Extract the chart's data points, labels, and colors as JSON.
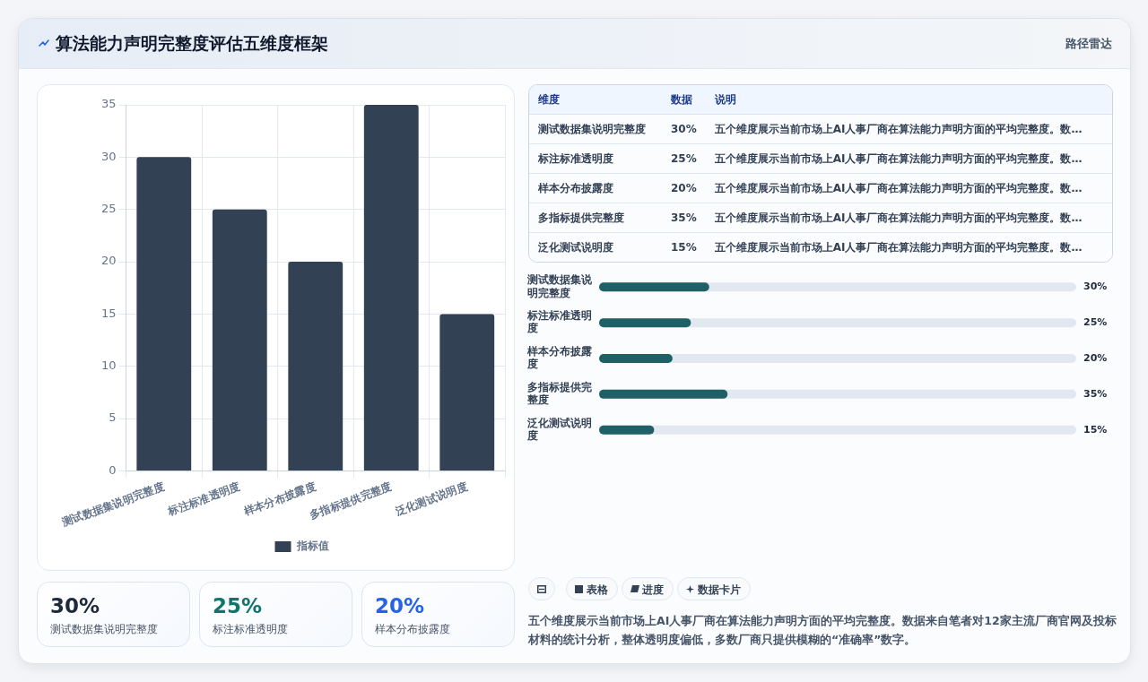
{
  "chart_data": [
    {
      "type": "other",
      "title": "算法能力声明完整度评估五维度框架",
      "subtitle": "路径雷达"
    },
    {
      "type": "bar",
      "categories": [
        "测试数据集说明完整度",
        "标注标准透明度",
        "样本分布披露度",
        "多指标提供完整度",
        "泛化测试说明度"
      ],
      "series": [
        {
          "name": "指标值",
          "color": "#334155",
          "values": [
            30,
            25,
            20,
            35,
            15
          ]
        }
      ],
      "ylim": [
        0,
        35
      ],
      "yticks": [
        0,
        5,
        10,
        15,
        20,
        25,
        30,
        35
      ],
      "grid": true,
      "legend": "bottom"
    },
    {
      "type": "bar",
      "orientation": "horizontal",
      "categories": [
        "测试数据集说明完整度",
        "标注标准透明度",
        "样本分布披露度",
        "多指标提供完整度",
        "泛化测试说明度"
      ],
      "series": [
        {
          "color": "#1f5f66",
          "values": [
            30,
            25,
            20,
            35,
            15
          ],
          "value_labels": [
            "30%",
            "25%",
            "20%",
            "35%",
            "15%"
          ]
        }
      ],
      "xlim": [
        0,
        130
      ],
      "tick_labels": "y",
      "annotations": [
        "维度",
        "数据",
        "说明",
        "五个维度展示当前市场上AI人事厂商在算法能力声明方面的平均完整度。数…",
        "五个维度展示当前市场上AI人事厂商在算法能力声明方面的平均完整度。数…",
        "五个维度展示当前市场上AI人事厂商在算法能力声明方面的平均完整度。数…",
        "五个维度展示当前市场上AI人事厂商在算法能力声明方面的平均完整度。数…",
        "五个维度展示当前市场上AI人事厂商在算法能力声明方面的平均完整度。数…"
      ]
    },
    {
      "type": "other",
      "categories": [
        "测试数据集说明完整度",
        "标注标准透明度",
        "样本分布披露度"
      ],
      "value_labels": [
        "30%",
        "25%",
        "20%"
      ]
    },
    {
      "type": "other",
      "annotations": [
        "表格",
        "进度",
        "数据卡片",
        "五个维度展示当前市场上AI人事厂商在算法能力声明方面的平均完整度。数据来自笔者对12家主流厂商官网及投标材料的统计分析，整体透明度偏低，多数厂商只提供模糊的“准确率”数字。"
      ]
    }
  ]
}
